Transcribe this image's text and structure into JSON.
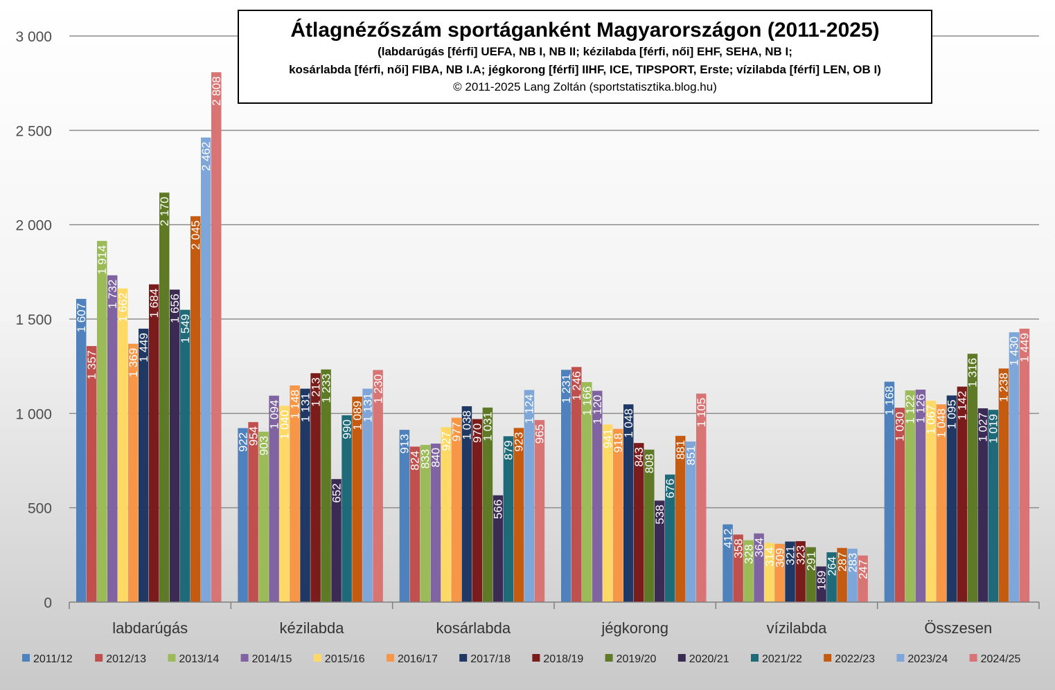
{
  "chart_data": {
    "type": "bar",
    "title": "Átlagnézőszám sportáganként Magyarországon (2011-2025)",
    "subtitle_lines": [
      "(labdarúgás [férfi] UEFA, NB I, NB II; kézilabda [férfi, női] EHF, SEHA, NB I;",
      "kosárlabda [férfi, női] FIBA, NB I.A; jégkorong [férfi] IIHF, ICE, TIPSPORT, Erste; vízilabda [férfi] LEN, OB I)"
    ],
    "credit": "© 2011-2025 Lang Zoltán (sportstatisztika.blog.hu)",
    "xlabel": "",
    "ylabel": "",
    "ylim": [
      0,
      3000
    ],
    "yticks": [
      0,
      500,
      1000,
      1500,
      2000,
      2500,
      3000
    ],
    "ytick_labels": [
      "0",
      "500",
      "1 000",
      "1 500",
      "2 000",
      "2 500",
      "3 000"
    ],
    "grid": true,
    "legend_position": "bottom",
    "categories": [
      "labdarúgás",
      "kézilabda",
      "kosárlabda",
      "jégkorong",
      "vízilabda",
      "Összesen"
    ],
    "series": [
      {
        "name": "2011/12",
        "color": "#4f81bd",
        "values": [
          1607,
          922,
          913,
          1231,
          412,
          1168
        ]
      },
      {
        "name": "2012/13",
        "color": "#c0504d",
        "values": [
          1357,
          954,
          824,
          1246,
          358,
          1030
        ]
      },
      {
        "name": "2013/14",
        "color": "#9bbb59",
        "values": [
          1914,
          903,
          833,
          1166,
          328,
          1122
        ]
      },
      {
        "name": "2014/15",
        "color": "#8064a2",
        "values": [
          1732,
          1094,
          840,
          1120,
          364,
          1126
        ]
      },
      {
        "name": "2015/16",
        "color": "#ffd966",
        "values": [
          1662,
          1040,
          927,
          941,
          314,
          1067
        ]
      },
      {
        "name": "2016/17",
        "color": "#f79646",
        "values": [
          1369,
          1148,
          977,
          918,
          309,
          1048
        ]
      },
      {
        "name": "2017/18",
        "color": "#1f3864",
        "values": [
          1449,
          1131,
          1038,
          1048,
          321,
          1095
        ]
      },
      {
        "name": "2018/19",
        "color": "#7b1c1c",
        "values": [
          1684,
          1213,
          970,
          843,
          323,
          1142
        ]
      },
      {
        "name": "2019/20",
        "color": "#5e7a26",
        "values": [
          2170,
          1233,
          1031,
          808,
          291,
          1316
        ]
      },
      {
        "name": "2020/21",
        "color": "#3b2a54",
        "values": [
          1656,
          652,
          566,
          538,
          189,
          1027
        ]
      },
      {
        "name": "2021/22",
        "color": "#1e6a78",
        "values": [
          1549,
          990,
          879,
          676,
          264,
          1019
        ]
      },
      {
        "name": "2022/23",
        "color": "#c55a11",
        "values": [
          2045,
          1089,
          923,
          881,
          287,
          1238
        ]
      },
      {
        "name": "2023/24",
        "color": "#7fa6d9",
        "values": [
          2462,
          1131,
          1124,
          851,
          283,
          1430
        ]
      },
      {
        "name": "2024/25",
        "color": "#d87474",
        "values": [
          2808,
          1230,
          965,
          1105,
          247,
          1449
        ]
      }
    ],
    "data_labels": {
      "labdarúgás": [
        "1 607",
        "1 357",
        "1 914",
        "1 732",
        "1 662",
        "1 369",
        "1 449",
        "1 684",
        "2 170",
        "1 656",
        "1 549",
        "2 045",
        "2 462",
        "2 808"
      ],
      "kézilabda": [
        "922",
        "954",
        "903",
        "1 094",
        "1 040",
        "1 148",
        "1 131",
        "1 213",
        "1 233",
        "652",
        "990",
        "1 089",
        "1 131",
        "1 230"
      ],
      "kosárlabda": [
        "913",
        "824",
        "833",
        "840",
        "927",
        "977",
        "1 038",
        "970",
        "1 031",
        "566",
        "879",
        "923",
        "1 124",
        "965"
      ],
      "jégkorong": [
        "1 231",
        "1 246",
        "1 166",
        "1 120",
        "941",
        "918",
        "1 048",
        "843",
        "808",
        "538",
        "676",
        "881",
        "851",
        "1 105"
      ],
      "vízilabda": [
        "412",
        "358",
        "328",
        "364",
        "314",
        "309",
        "321",
        "323",
        "291",
        "189",
        "264",
        "287",
        "283",
        "247"
      ],
      "Összesen": [
        "1 168",
        "1 030",
        "1 122",
        "1 126",
        "1 067",
        "1 048",
        "1 095",
        "1 142",
        "1 316",
        "1 027",
        "1 019",
        "1 238",
        "1 430",
        "1 449"
      ]
    }
  }
}
